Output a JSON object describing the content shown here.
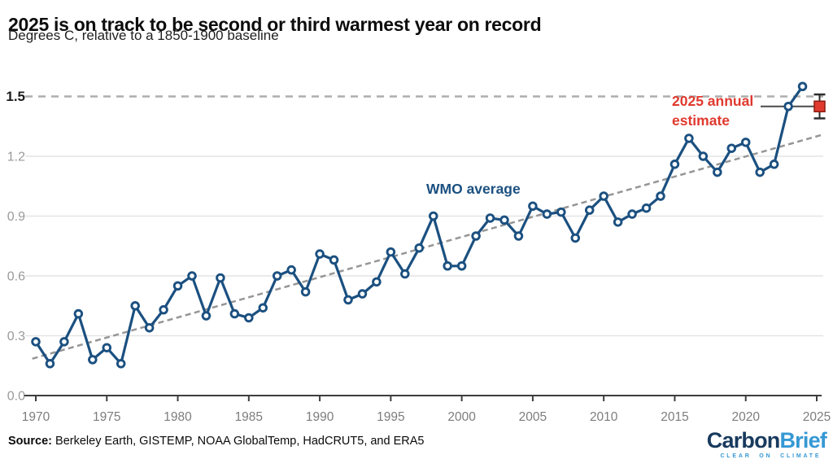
{
  "header": {
    "title": "2025 is on track to be second or third warmest year on record",
    "subtitle": "Degrees C, relative to a 1850-1900 baseline"
  },
  "chart_data": {
    "type": "line",
    "title": "2025 is on track to be second or third warmest year on record",
    "ylabel": "Degrees C, relative to a 1850-1900 baseline",
    "xlabel": "",
    "grid": "horizontal",
    "legend_position": "inline-annotations",
    "xlim": [
      1969.2,
      2026.2
    ],
    "ylim": [
      0,
      1.65
    ],
    "x_ticks": [
      1970,
      1975,
      1980,
      1985,
      1990,
      1995,
      2000,
      2005,
      2010,
      2015,
      2020,
      2025
    ],
    "y_ticks": [
      0.0,
      0.3,
      0.6,
      0.9,
      1.2,
      1.5
    ],
    "highlight_y": 1.5,
    "series": [
      {
        "name": "WMO average",
        "x": [
          1970,
          1971,
          1972,
          1973,
          1974,
          1975,
          1976,
          1977,
          1978,
          1979,
          1980,
          1981,
          1982,
          1983,
          1984,
          1985,
          1986,
          1987,
          1988,
          1989,
          1990,
          1991,
          1992,
          1993,
          1994,
          1995,
          1996,
          1997,
          1998,
          1999,
          2000,
          2001,
          2002,
          2003,
          2004,
          2005,
          2006,
          2007,
          2008,
          2009,
          2010,
          2011,
          2012,
          2013,
          2014,
          2015,
          2016,
          2017,
          2018,
          2019,
          2020,
          2021,
          2022,
          2023,
          2024
        ],
        "values": [
          0.27,
          0.16,
          0.27,
          0.41,
          0.18,
          0.24,
          0.16,
          0.45,
          0.34,
          0.43,
          0.55,
          0.6,
          0.4,
          0.59,
          0.41,
          0.39,
          0.44,
          0.6,
          0.63,
          0.52,
          0.71,
          0.68,
          0.48,
          0.51,
          0.57,
          0.72,
          0.61,
          0.74,
          0.9,
          0.65,
          0.65,
          0.8,
          0.89,
          0.88,
          0.8,
          0.95,
          0.91,
          0.92,
          0.79,
          0.93,
          1.0,
          0.87,
          0.91,
          0.94,
          1.0,
          1.16,
          1.29,
          1.2,
          1.12,
          1.24,
          1.27,
          1.12,
          1.16,
          1.45,
          1.55
        ]
      }
    ],
    "estimate_2025": {
      "label": "2025 annual estimate",
      "year": 2025,
      "value": 1.45,
      "low": 1.39,
      "high": 1.51
    },
    "trend": {
      "style": "dashed",
      "start_year": 1970,
      "start_value": 0.19,
      "end_year": 2025,
      "end_value": 1.3
    },
    "annotations": {
      "series_label": "WMO average",
      "estimate_line1": "2025 annual",
      "estimate_line2": "estimate"
    },
    "colors": {
      "line": "#1b5080",
      "marker_fill": "#ffffff",
      "estimate_red": "#e0392e",
      "estimate_border": "#8b1a10",
      "errorbar": "#2d2d2d",
      "leader_line": "#4a4a4a",
      "trend": "#969696",
      "dashed_target": "#adadad",
      "grid": "#e4e4e4",
      "axis": "#3d3d3d",
      "x_tick_label": "#7d7d7d",
      "y_tick_label": "#9a9a9a",
      "y_tick_label_bold": "#1b1b1b"
    }
  },
  "footer": {
    "source_label": "Source:",
    "source_text": " Berkeley Earth, GISTEMP, NOAA GlobalTemp, HadCRUT5, and ERA5",
    "logo": {
      "part1": "Carbon",
      "part2": "Brief",
      "tagline": "CLEAR ON CLIMATE"
    }
  }
}
